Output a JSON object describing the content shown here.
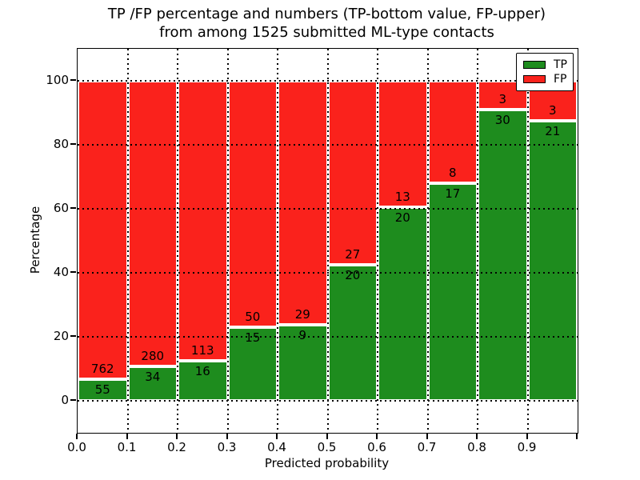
{
  "figure": {
    "title_line1": "TP /FP percentage and numbers (TP-bottom value, FP-upper)",
    "title_line2": "from among 1525 submitted ML-type contacts"
  },
  "axes": {
    "xlabel": "Predicted probability",
    "ylabel": "Percentage"
  },
  "legend": {
    "items": [
      {
        "label": "TP",
        "color": "#1e8c1e"
      },
      {
        "label": "FP",
        "color": "#fa221c"
      }
    ]
  },
  "chart_data": {
    "type": "bar",
    "stacked": true,
    "normalized_to_100_percent": true,
    "title": "TP /FP percentage and numbers (TP-bottom value, FP-upper) from among 1525 submitted ML-type contacts",
    "xlabel": "Predicted probability",
    "ylabel": "Percentage",
    "total_contacts": 1525,
    "bin_width": 0.1,
    "categories": [
      "0.0-0.1",
      "0.1-0.2",
      "0.2-0.3",
      "0.3-0.4",
      "0.4-0.5",
      "0.5-0.6",
      "0.6-0.7",
      "0.7-0.8",
      "0.8-0.9",
      "0.9-1.0"
    ],
    "bin_starts": [
      0.0,
      0.1,
      0.2,
      0.3,
      0.4,
      0.5,
      0.6,
      0.7,
      0.8,
      0.9
    ],
    "series": [
      {
        "name": "TP",
        "color": "#1e8c1e",
        "counts": [
          55,
          34,
          16,
          15,
          9,
          20,
          20,
          17,
          30,
          21
        ]
      },
      {
        "name": "FP",
        "color": "#fa221c",
        "counts": [
          762,
          280,
          113,
          50,
          29,
          27,
          13,
          8,
          3,
          3
        ]
      }
    ],
    "tp_percent_of_bin": [
      6.73,
      10.83,
      12.4,
      23.08,
      23.68,
      42.55,
      60.61,
      68.0,
      90.91,
      87.5
    ],
    "xlim": [
      0.0,
      1.0
    ],
    "ylim": [
      -10,
      110
    ],
    "y_ticks": [
      0,
      20,
      40,
      60,
      80,
      100
    ],
    "x_tick_labels": [
      "0.0",
      "0.1",
      "0.2",
      "0.3",
      "0.4",
      "0.5",
      "0.6",
      "0.7",
      "0.8",
      "0.9"
    ],
    "grid": true,
    "grid_style": "dotted",
    "legend_position": "upper right",
    "bar_edge_color": "#ffffff",
    "background_color": "#ffffff",
    "text_color": "#000000"
  }
}
